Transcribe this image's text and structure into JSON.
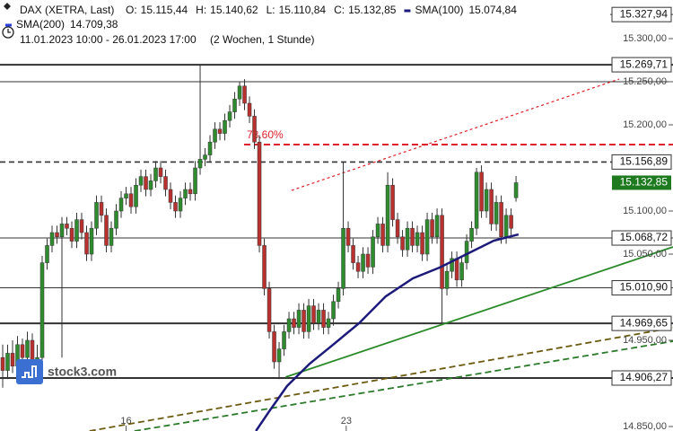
{
  "chart_data": {
    "type": "candlestick",
    "title": "DAX (XETRA, Last)",
    "ohlc_labels": [
      {
        "name": "O:",
        "value": "15.115,44"
      },
      {
        "name": "H:",
        "value": "15.140,62"
      },
      {
        "name": "L:",
        "value": "15.110,84"
      },
      {
        "name": "C:",
        "value": "15.132,85"
      }
    ],
    "indicator_legend": [
      {
        "name": "SMA(100)",
        "value": "15.074,84",
        "color": "#1c1a7a"
      },
      {
        "name": "SMA(200)",
        "value": "14.709,38",
        "color": "#2a3fd6"
      }
    ],
    "period": "11.01.2023 10:00 - 26.01.2023 17:00",
    "period_note": "(2 Wochen, 1 Stunde)",
    "watermark": "stock3.com",
    "xlim": [
      0,
      135.8
    ],
    "ylim": [
      14844.8,
      15344.8
    ],
    "xticks": [
      {
        "value": 25,
        "label": "16"
      },
      {
        "value": 69.6,
        "label": "23"
      }
    ],
    "yticks": [
      {
        "value": 15300,
        "label": "15.300,00"
      },
      {
        "value": 15250,
        "label": "15.250,00"
      },
      {
        "value": 15200,
        "label": "15.200,00"
      },
      {
        "value": 15100,
        "label": "15.100,00"
      },
      {
        "value": 15050,
        "label": "15.050,00"
      },
      {
        "value": 14950,
        "label": "14.950,00"
      },
      {
        "value": 14850,
        "label": "14.850,00"
      }
    ],
    "up_color": "#2e8b2e",
    "down_color": "#b8312f",
    "candles": [
      [
        14930,
        14945,
        14895,
        14915
      ],
      [
        14915,
        14945,
        14905,
        14935
      ],
      [
        14935,
        14950,
        14912,
        14920
      ],
      [
        14920,
        14955,
        14912,
        14945
      ],
      [
        14945,
        14952,
        14922,
        14930
      ],
      [
        14930,
        14960,
        14922,
        14950
      ],
      [
        14950,
        14958,
        14917,
        14925
      ],
      [
        14925,
        14945,
        14918,
        14930
      ],
      [
        14930,
        15048,
        14925,
        15040
      ],
      [
        15040,
        15068,
        15032,
        15060
      ],
      [
        15060,
        15083,
        15052,
        15075
      ],
      [
        15075,
        15083,
        15062,
        15070
      ],
      [
        15070,
        15093,
        14930,
        15085
      ],
      [
        15085,
        15093,
        15072,
        15080
      ],
      [
        15080,
        15088,
        15057,
        15065
      ],
      [
        15065,
        15098,
        15057,
        15090
      ],
      [
        15090,
        15098,
        15067,
        15075
      ],
      [
        15075,
        15083,
        15042,
        15050
      ],
      [
        15050,
        15088,
        15042,
        15080
      ],
      [
        15080,
        15118,
        15072,
        15110
      ],
      [
        15110,
        15118,
        15087,
        15095
      ],
      [
        15095,
        15103,
        15052,
        15060
      ],
      [
        15060,
        15088,
        15052,
        15080
      ],
      [
        15080,
        15108,
        15072,
        15100
      ],
      [
        15100,
        15123,
        15092,
        15115
      ],
      [
        15115,
        15128,
        15107,
        15120
      ],
      [
        15120,
        15128,
        15097,
        15105
      ],
      [
        15105,
        15138,
        15097,
        15130
      ],
      [
        15130,
        15148,
        15122,
        15140
      ],
      [
        15140,
        15148,
        15117,
        15125
      ],
      [
        15125,
        15143,
        15117,
        15135
      ],
      [
        15135,
        15158,
        15127,
        15150
      ],
      [
        15150,
        15158,
        15132,
        15140
      ],
      [
        15140,
        15148,
        15117,
        15125
      ],
      [
        15125,
        15133,
        15102,
        15110
      ],
      [
        15110,
        15118,
        15092,
        15100
      ],
      [
        15100,
        15123,
        15092,
        15115
      ],
      [
        15115,
        15133,
        15107,
        15125
      ],
      [
        15125,
        15133,
        15112,
        15120
      ],
      [
        15120,
        15158,
        15112,
        15150
      ],
      [
        15150,
        15270,
        15142,
        15160
      ],
      [
        15160,
        15173,
        15152,
        15165
      ],
      [
        15165,
        15188,
        15157,
        15180
      ],
      [
        15180,
        15203,
        15172,
        15195
      ],
      [
        15195,
        15203,
        15182,
        15190
      ],
      [
        15190,
        15213,
        15182,
        15205
      ],
      [
        15205,
        15223,
        15197,
        15215
      ],
      [
        15215,
        15238,
        15207,
        15230
      ],
      [
        15230,
        15250,
        15222,
        15245
      ],
      [
        15245,
        15253,
        15217,
        15225
      ],
      [
        15225,
        15233,
        15202,
        15210
      ],
      [
        15210,
        15218,
        15172,
        15180
      ],
      [
        15180,
        15188,
        15052,
        15060
      ],
      [
        15060,
        15068,
        15002,
        15010
      ],
      [
        15010,
        15018,
        14952,
        14960
      ],
      [
        14960,
        14968,
        14917,
        14925
      ],
      [
        14925,
        14948,
        14905,
        14940
      ],
      [
        14940,
        14968,
        14932,
        14960
      ],
      [
        14960,
        14983,
        14952,
        14975
      ],
      [
        14975,
        14983,
        14957,
        14965
      ],
      [
        14965,
        14993,
        14957,
        14985
      ],
      [
        14985,
        14993,
        14952,
        14960
      ],
      [
        14960,
        14998,
        14952,
        14990
      ],
      [
        14990,
        14998,
        14962,
        14970
      ],
      [
        14970,
        14993,
        14962,
        14985
      ],
      [
        14985,
        14993,
        14957,
        14965
      ],
      [
        14965,
        14983,
        14957,
        14975
      ],
      [
        14975,
        15003,
        14967,
        14995
      ],
      [
        14995,
        15018,
        14987,
        15010
      ],
      [
        15010,
        15157,
        15002,
        15080
      ],
      [
        15080,
        15088,
        15052,
        15060
      ],
      [
        15060,
        15068,
        15032,
        15040
      ],
      [
        15040,
        15048,
        15022,
        15030
      ],
      [
        15030,
        15058,
        15022,
        15050
      ],
      [
        15050,
        15058,
        15027,
        15035
      ],
      [
        15035,
        15078,
        15027,
        15070
      ],
      [
        15070,
        15093,
        15062,
        15085
      ],
      [
        15085,
        15093,
        15052,
        15060
      ],
      [
        15060,
        15145,
        15052,
        15130
      ],
      [
        15130,
        15138,
        15082,
        15090
      ],
      [
        15090,
        15098,
        15062,
        15070
      ],
      [
        15070,
        15078,
        15047,
        15055
      ],
      [
        15055,
        15088,
        15047,
        15080
      ],
      [
        15080,
        15088,
        15052,
        15060
      ],
      [
        15060,
        15083,
        15052,
        15075
      ],
      [
        15075,
        15083,
        15042,
        15050
      ],
      [
        15050,
        15098,
        15042,
        15090
      ],
      [
        15090,
        15098,
        15062,
        15070
      ],
      [
        15070,
        15103,
        15062,
        15095
      ],
      [
        15095,
        15103,
        14970,
        15010
      ],
      [
        15010,
        15038,
        15002,
        15030
      ],
      [
        15030,
        15053,
        15022,
        15045
      ],
      [
        15045,
        15053,
        15012,
        15020
      ],
      [
        15020,
        15048,
        15012,
        15040
      ],
      [
        15040,
        15073,
        15032,
        15065
      ],
      [
        15065,
        15088,
        15057,
        15080
      ],
      [
        15080,
        15150,
        15072,
        15145
      ],
      [
        15145,
        15153,
        15092,
        15100
      ],
      [
        15100,
        15133,
        15092,
        15125
      ],
      [
        15125,
        15133,
        15077,
        15085
      ],
      [
        15085,
        15118,
        15077,
        15110
      ],
      [
        15110,
        15118,
        15062,
        15070
      ],
      [
        15070,
        15103,
        15062,
        15095
      ],
      [
        15095,
        15103,
        15072,
        15080
      ],
      [
        15115.44,
        15140.62,
        15110.84,
        15132.85
      ]
    ],
    "sma": {
      "name": "SMA(100)",
      "color": "#1c1a7a",
      "x": [
        51.3,
        54.0,
        57.6,
        62.2,
        66.7,
        72.2,
        77.6,
        83.1,
        88.5,
        94.0,
        99.5,
        104.5
      ],
      "values": [
        14844.8,
        14867.7,
        14896.9,
        14922.9,
        14943.8,
        14969.8,
        15001.0,
        15021.9,
        15034.4,
        15050.0,
        15065.6,
        15072.9
      ]
    },
    "levels": [
      {
        "value": 15327.94,
        "label": "15.327,94",
        "style": "short"
      },
      {
        "value": 15269.71,
        "label": "15.269,71",
        "style": "bold"
      },
      {
        "value": 15250,
        "style": "thin"
      },
      {
        "value": 15156.89,
        "label": "15.156,89",
        "style": "dashed"
      },
      {
        "value": 15068.72,
        "label": "15.068,72",
        "style": "thin"
      },
      {
        "value": 15010.9,
        "label": "15.010,90",
        "style": "thin"
      },
      {
        "value": 14969.65,
        "label": "14.969,65",
        "style": "bold"
      },
      {
        "value": 14906.27,
        "label": "14.906,27",
        "style": "bold"
      }
    ],
    "current_price": {
      "value": 15132.85,
      "label": "15.132,85",
      "color": "#1e7a1e"
    },
    "fib": {
      "value": 15177.1,
      "label": "78.60%",
      "x_start": 48.9,
      "color": "#e0202a"
    },
    "trendlines": [
      {
        "x": [
          58.5,
          124.9
        ],
        "values": [
          15123.9,
          15253.1
        ],
        "color": "#e0202a",
        "style": "dotted"
      },
      {
        "x": [
          57.3,
          135.8
        ],
        "values": [
          14907.3,
          15058.3
        ],
        "color": "#2a8a2a",
        "style": "solid"
      },
      {
        "x": [
          17.6,
          135.8
        ],
        "values": [
          14844.8,
          14964.6
        ],
        "color": "#6b5a10",
        "style": "dashed"
      },
      {
        "x": [
          26.7,
          135.8
        ],
        "values": [
          14844.8,
          14948.9
        ],
        "color": "#2a7a2a",
        "style": "dashed"
      }
    ]
  }
}
